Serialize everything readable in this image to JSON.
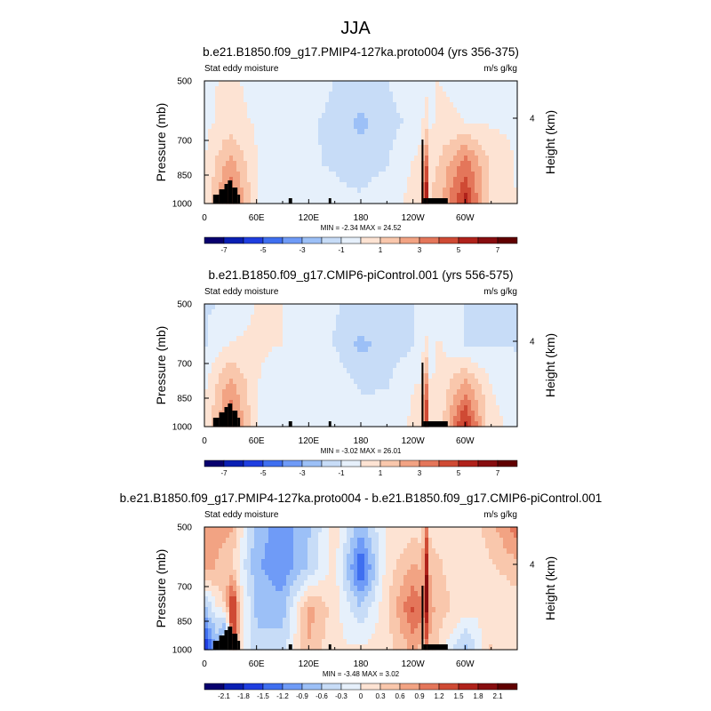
{
  "title": "JJA",
  "colors": {
    "diverging": [
      "#08006e",
      "#0a1fb3",
      "#1f3ee0",
      "#3f6ff0",
      "#6f9bf7",
      "#9cc0f7",
      "#c7dcf7",
      "#e6f0fb",
      "#fde3d3",
      "#f9c7ac",
      "#f2a383",
      "#e4765a",
      "#cf4a34",
      "#b0221b",
      "#870d0f",
      "#600000"
    ],
    "terrain": "#000000"
  },
  "chart_data": [
    {
      "type": "heatmap",
      "title": "b.e21.B1850.f09_g17.PMIP4-127ka.proto004 (yrs 356-375)",
      "left_label": "Stat eddy moisture",
      "units": "m/s g/kg",
      "ylabel": "Pressure (mb)",
      "y2label": "Height (km)",
      "y_ticks": [
        "500",
        "700",
        "850",
        "1000"
      ],
      "y2_ticks": [
        "4"
      ],
      "x_ticks": [
        "0",
        "60E",
        "120E",
        "180",
        "120W",
        "60W"
      ],
      "stats": "MIN = -2.34  MAX = 24.52",
      "colorbar_labels": [
        "-7",
        "-5",
        "-3",
        "-1",
        "1",
        "3",
        "5",
        "7"
      ],
      "levels": [
        -7.5,
        -6.5,
        -5.5,
        -4.5,
        -3.5,
        -2.5,
        -1.5,
        -0.5,
        0.5,
        1.5,
        2.5,
        3.5,
        4.5,
        5.5,
        6.5,
        7.5
      ],
      "grid_cols": [
        0,
        30,
        60,
        90,
        120,
        150,
        180,
        210,
        240,
        270,
        300,
        330,
        360
      ],
      "grid_rows": [
        [
          0.4,
          0.6,
          0.3,
          0.2,
          0.4,
          -0.6,
          -0.9,
          -0.6,
          0.4,
          0.5,
          0.3,
          0.2,
          0.3
        ],
        [
          0.3,
          0.8,
          0.4,
          0.2,
          -0.3,
          -0.8,
          -1.8,
          -0.8,
          -0.3,
          0.7,
          0.5,
          0.4,
          0.3
        ],
        [
          0.4,
          3.0,
          0.5,
          -0.3,
          -0.4,
          -0.6,
          -1.0,
          -0.6,
          0.6,
          1.5,
          4.0,
          1.2,
          0.4
        ],
        [
          0.5,
          4.5,
          0.6,
          -0.4,
          -0.3,
          -0.2,
          -0.3,
          0.3,
          0.7,
          2.0,
          6.0,
          1.0,
          0.5
        ]
      ]
    },
    {
      "type": "heatmap",
      "title": "b.e21.B1850.f09_g17.CMIP6-piControl.001 (yrs 556-575)",
      "left_label": "Stat eddy moisture",
      "units": "m/s g/kg",
      "ylabel": "Pressure (mb)",
      "y2label": "Height (km)",
      "y_ticks": [
        "500",
        "700",
        "850",
        "1000"
      ],
      "y2_ticks": [
        "4"
      ],
      "x_ticks": [
        "0",
        "60E",
        "120E",
        "180",
        "120W",
        "60W"
      ],
      "stats": "MIN = -3.02  MAX = 26.01",
      "colorbar_labels": [
        "-7",
        "-5",
        "-3",
        "-1",
        "1",
        "3",
        "5",
        "7"
      ],
      "levels": [
        -7.5,
        -6.5,
        -5.5,
        -4.5,
        -3.5,
        -2.5,
        -1.5,
        -0.5,
        0.5,
        1.5,
        2.5,
        3.5,
        4.5,
        5.5,
        6.5,
        7.5
      ],
      "grid_cols": [
        0,
        30,
        60,
        90,
        120,
        150,
        180,
        210,
        240,
        270,
        300,
        330,
        360
      ],
      "grid_rows": [
        [
          -0.6,
          -0.4,
          0.6,
          0.5,
          0.3,
          -0.4,
          -0.7,
          -0.7,
          -0.6,
          0.3,
          -0.6,
          -0.7,
          -0.6
        ],
        [
          -0.6,
          0.6,
          0.7,
          0.5,
          0.4,
          -0.6,
          -1.8,
          -1.0,
          -0.6,
          0.6,
          -0.6,
          -0.6,
          -0.6
        ],
        [
          0.3,
          3.0,
          0.6,
          -0.5,
          -0.4,
          0.4,
          -0.7,
          -0.6,
          0.5,
          0.6,
          3.0,
          0.5,
          0.3
        ],
        [
          0.5,
          4.5,
          0.6,
          -0.4,
          -0.3,
          0.4,
          0.3,
          0.3,
          0.6,
          0.7,
          6.0,
          0.6,
          0.4
        ]
      ]
    },
    {
      "type": "heatmap",
      "title": "b.e21.B1850.f09_g17.PMIP4-127ka.proto004 - b.e21.B1850.f09_g17.CMIP6-piControl.001",
      "left_label": "Stat eddy moisture",
      "units": "m/s g/kg",
      "ylabel": "Pressure (mb)",
      "y2label": "Height (km)",
      "y_ticks": [
        "500",
        "700",
        "850",
        "1000"
      ],
      "y2_ticks": [
        "4"
      ],
      "x_ticks": [
        "0",
        "60E",
        "120E",
        "180",
        "120W",
        "60W"
      ],
      "stats": "MIN = -3.48  MAX =  3.02",
      "colorbar_labels": [
        "-2.1",
        "-1.8",
        "-1.5",
        "-1.2",
        "-0.9",
        "-0.6",
        "-0.3",
        "0",
        "0.3",
        "0.6",
        "0.9",
        "1.2",
        "1.5",
        "1.8",
        "2.1"
      ],
      "levels": [
        -2.25,
        -1.95,
        -1.65,
        -1.35,
        -1.05,
        -0.75,
        -0.45,
        -0.15,
        0.15,
        0.45,
        0.75,
        1.05,
        1.35,
        1.65,
        1.95,
        2.25
      ],
      "grid_cols": [
        0,
        30,
        60,
        90,
        120,
        150,
        180,
        210,
        240,
        270,
        300,
        330,
        360
      ],
      "grid_rows": [
        [
          1.0,
          0.8,
          -0.6,
          -0.9,
          -0.5,
          0.3,
          -0.6,
          0.2,
          0.3,
          0.3,
          0.2,
          0.6,
          1.3
        ],
        [
          0.9,
          0.5,
          -0.7,
          -1.0,
          -0.4,
          0.3,
          -1.4,
          0.3,
          0.8,
          0.5,
          0.2,
          0.4,
          0.6
        ],
        [
          -0.6,
          1.0,
          -0.5,
          -0.6,
          0.9,
          0.3,
          -0.4,
          0.4,
          1.4,
          0.6,
          0.3,
          0.2,
          0.3
        ],
        [
          -1.8,
          0.8,
          -0.4,
          -0.3,
          0.7,
          0.2,
          0.2,
          0.3,
          0.8,
          0.4,
          -0.6,
          0.5,
          0.2
        ]
      ]
    }
  ]
}
